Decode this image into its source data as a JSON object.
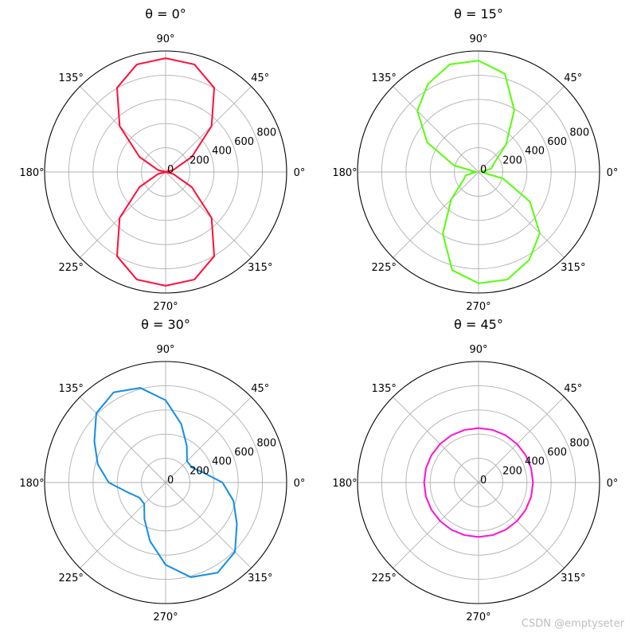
{
  "watermark": "CSDN @emptyseter",
  "chart_data": [
    {
      "type": "polar-line",
      "title": "θ = 0°",
      "color": "#ff0f3a",
      "rlim": [
        0,
        1000
      ],
      "radial_ticks": [
        "0",
        "200",
        "400",
        "600",
        "800"
      ],
      "radial_tick_values": [
        0,
        200,
        400,
        600,
        800
      ],
      "angle_ticks": [
        "0°",
        "45°",
        "90°",
        "135°",
        "180°",
        "225°",
        "270°",
        "315°"
      ],
      "grid": true,
      "angles_deg": [
        0,
        15,
        30,
        45,
        60,
        75,
        90,
        105,
        120,
        135,
        150,
        165,
        180,
        195,
        210,
        225,
        240,
        255,
        270,
        285,
        300,
        315,
        330,
        345,
        360
      ],
      "r": [
        0,
        67,
        250,
        537,
        803,
        920,
        940,
        920,
        803,
        537,
        250,
        67,
        0,
        67,
        250,
        537,
        803,
        920,
        940,
        920,
        803,
        537,
        250,
        67,
        0
      ]
    },
    {
      "type": "polar-line",
      "title": "θ = 15°",
      "color": "#55ff0a",
      "rlim": [
        0,
        1000
      ],
      "radial_ticks": [
        "0",
        "200",
        "400",
        "600",
        "800"
      ],
      "radial_tick_values": [
        0,
        200,
        400,
        600,
        800
      ],
      "angle_ticks": [
        "0°",
        "45°",
        "90°",
        "135°",
        "180°",
        "225°",
        "270°",
        "315°"
      ],
      "grid": true,
      "angles_deg": [
        0,
        15,
        30,
        45,
        60,
        75,
        90,
        105,
        120,
        135,
        150,
        165,
        180,
        195,
        210,
        225,
        240,
        255,
        270,
        285,
        300,
        315,
        330,
        345,
        360
      ],
      "r": [
        20,
        110,
        150,
        320,
        590,
        840,
        920,
        920,
        838,
        715,
        490,
        210,
        20,
        110,
        150,
        320,
        590,
        840,
        920,
        920,
        838,
        715,
        490,
        210,
        20
      ]
    },
    {
      "type": "polar-line",
      "title": "θ = 30°",
      "color": "#108ee6",
      "rlim": [
        0,
        1000
      ],
      "radial_ticks": [
        "0",
        "200",
        "400",
        "600",
        "800"
      ],
      "radial_tick_values": [
        0,
        200,
        400,
        600,
        800
      ],
      "angle_ticks": [
        "0°",
        "45°",
        "90°",
        "135°",
        "180°",
        "225°",
        "270°",
        "315°"
      ],
      "grid": true,
      "angles_deg": [
        0,
        15,
        30,
        45,
        60,
        75,
        90,
        105,
        120,
        135,
        150,
        165,
        180,
        195,
        210,
        225,
        240,
        255,
        270,
        285,
        300,
        315,
        330,
        345,
        360
      ],
      "r": [
        470,
        320,
        250,
        250,
        350,
        500,
        680,
        810,
        860,
        810,
        680,
        580,
        470,
        320,
        250,
        250,
        350,
        500,
        680,
        810,
        860,
        810,
        680,
        580,
        470
      ]
    },
    {
      "type": "polar-line",
      "title": "θ = 45°",
      "color": "#ff0fd2",
      "rlim": [
        0,
        1000
      ],
      "radial_ticks": [
        "0",
        "200",
        "400",
        "600",
        "800"
      ],
      "radial_tick_values": [
        0,
        200,
        400,
        600,
        800
      ],
      "angle_ticks": [
        "0°",
        "45°",
        "90°",
        "135°",
        "180°",
        "225°",
        "270°",
        "315°"
      ],
      "grid": true,
      "angles_deg": [
        0,
        15,
        30,
        45,
        60,
        75,
        90,
        105,
        120,
        135,
        150,
        165,
        180,
        195,
        210,
        225,
        240,
        255,
        270,
        285,
        300,
        315,
        330,
        345,
        360
      ],
      "r": [
        450,
        450,
        450,
        450,
        450,
        450,
        450,
        450,
        450,
        450,
        450,
        450,
        450,
        450,
        450,
        450,
        450,
        450,
        450,
        450,
        450,
        450,
        450,
        450,
        450
      ]
    }
  ]
}
